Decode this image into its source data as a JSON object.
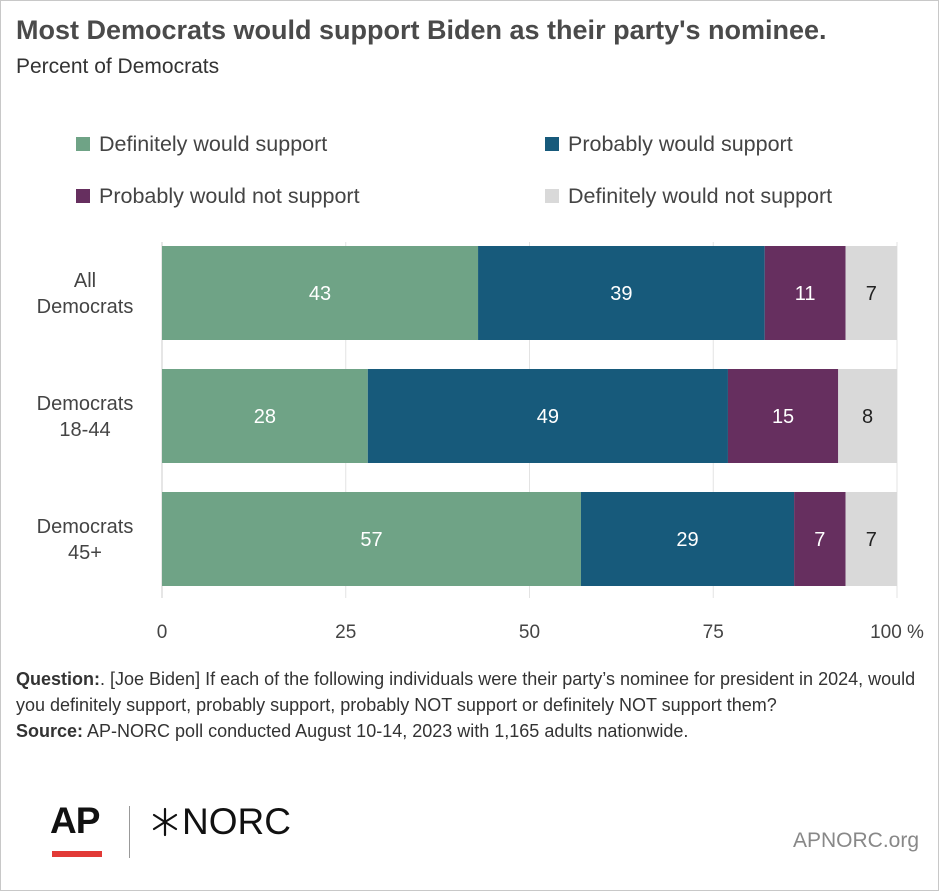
{
  "title": "Most Democrats would support Biden as their party's nominee.",
  "subtitle": "Percent of Democrats",
  "chart_data": {
    "type": "bar",
    "orientation": "horizontal",
    "stacked": true,
    "title": "Most Democrats would support Biden as their party's nominee.",
    "subtitle": "Percent of Democrats",
    "categories": [
      [
        "All",
        "Democrats"
      ],
      [
        "Democrats",
        "18-44"
      ],
      [
        "Democrats",
        "45+"
      ]
    ],
    "series": [
      {
        "name": "Definitely would support",
        "color": "#6fa386",
        "label_color": "#ffffff",
        "values": [
          43,
          28,
          57
        ]
      },
      {
        "name": "Probably would support",
        "color": "#175a7b",
        "label_color": "#ffffff",
        "values": [
          39,
          49,
          29
        ]
      },
      {
        "name": "Probably would not support",
        "color": "#662f5f",
        "label_color": "#ffffff",
        "values": [
          11,
          15,
          7
        ]
      },
      {
        "name": "Definitely would not support",
        "color": "#d9d9d9",
        "label_color": "#222222",
        "values": [
          7,
          8,
          7
        ]
      }
    ],
    "xlim": [
      0,
      100
    ],
    "xticks": [
      "0",
      "25",
      "50",
      "75",
      "100 %"
    ],
    "tick_values": [
      0,
      25,
      50,
      75,
      100
    ],
    "grid": true,
    "legend_position": "top"
  },
  "notes": {
    "question_label": "Question:",
    "question_text": ". [Joe Biden] If each of the following individuals  were their party’s nominee for president in 2024, would you definitely support, probably support, probably NOT support or definitely NOT support them?",
    "source_label": "Source:",
    "source_text": " AP-NORC poll conducted August 10-14, 2023 with 1,165 adults nationwide."
  },
  "logos": {
    "ap": "AP",
    "norc": "NORC",
    "site": "APNORC.org"
  }
}
